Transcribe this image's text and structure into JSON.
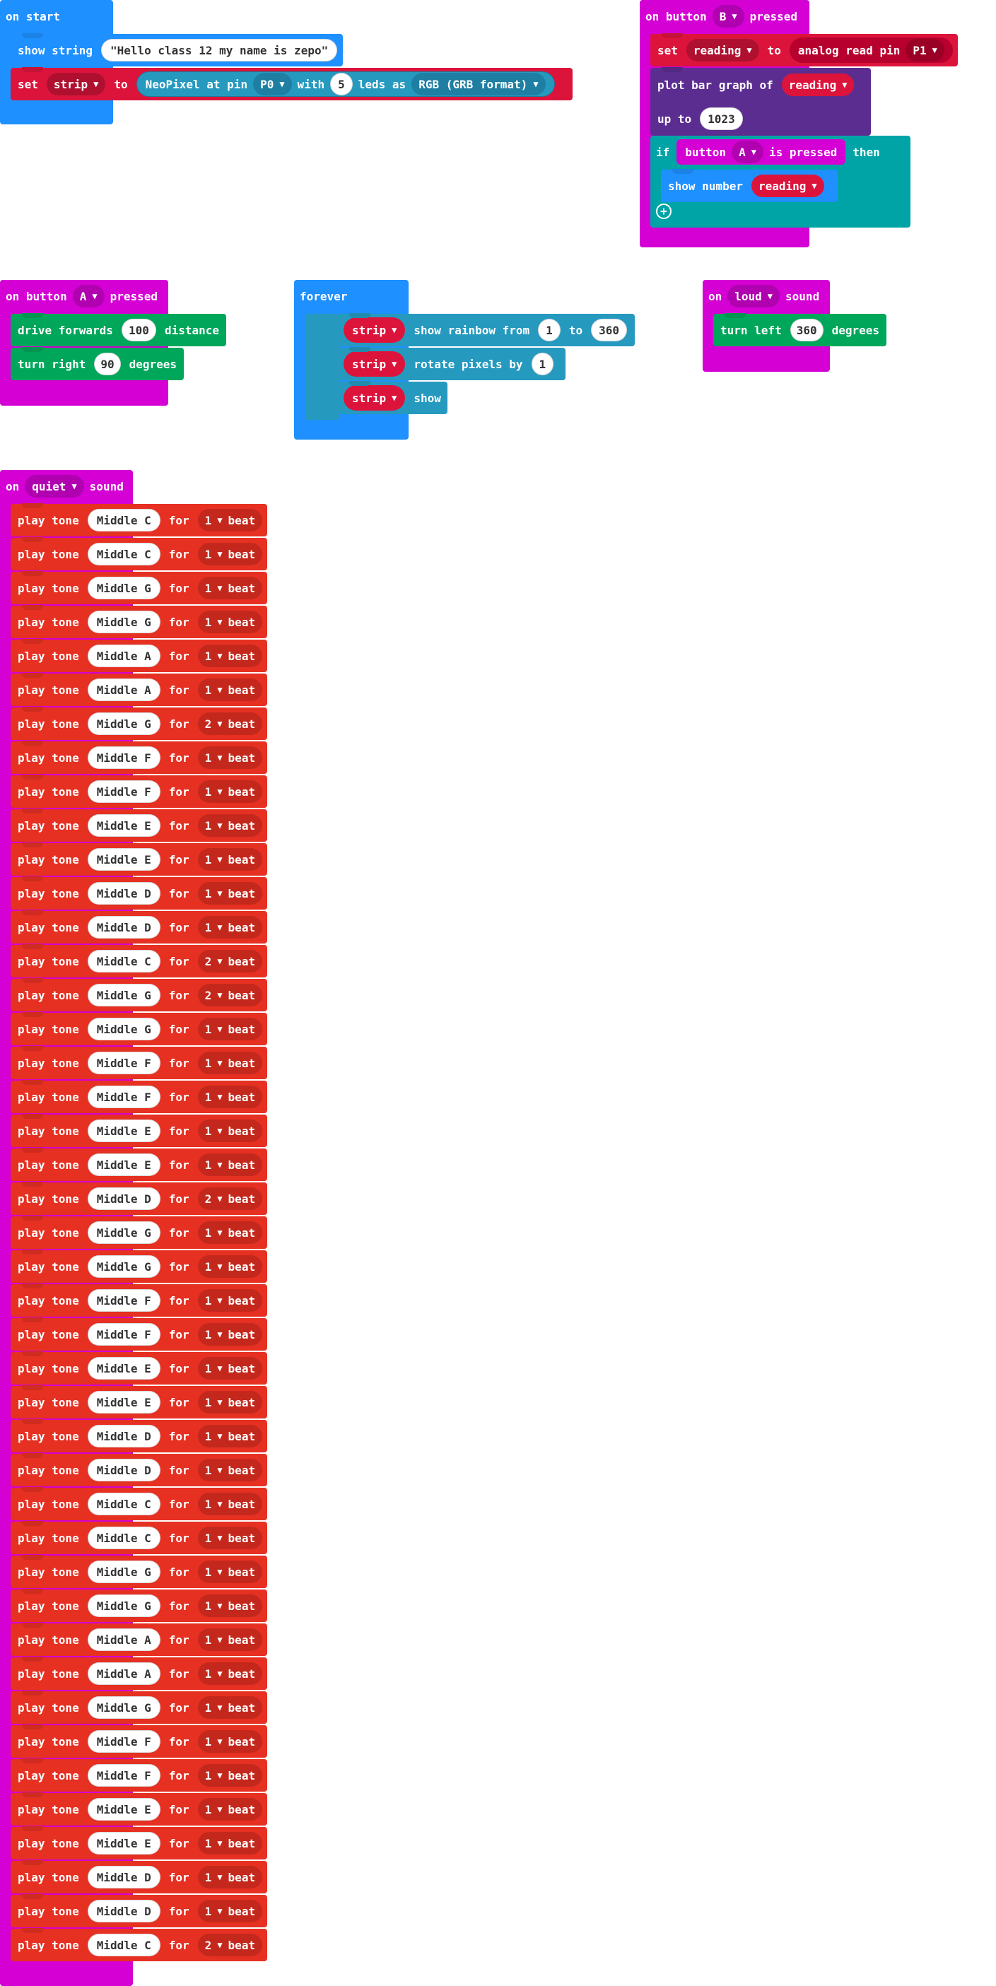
{
  "colors": {
    "basic": "#1e90ff",
    "variables": "#dc143c",
    "neopixel": "#2699bf",
    "input": "#d400d4",
    "led": "#5c2d91",
    "logic": "#00a4a6",
    "pins": "#b8002e",
    "robot": "#00a65a",
    "music": "#e63022"
  },
  "on_start": {
    "header": "on start",
    "show_string_label": "show string",
    "show_string_value": "\"Hello class 12 my name is zepo\"",
    "set_label": "set",
    "set_var": "strip",
    "to_label": "to",
    "neopixel_label": "NeoPixel at pin",
    "pin": "P0",
    "with_label": "with",
    "led_count": "5",
    "leds_as_label": "leds as",
    "format": "RGB (GRB format)"
  },
  "on_button_b": {
    "on_label": "on button",
    "button": "B",
    "pressed_label": "pressed",
    "set_label": "set",
    "var": "reading",
    "to_label": "to",
    "analog_label": "analog read pin",
    "analog_pin": "P1",
    "plot_label": "plot bar graph of",
    "plot_var": "reading",
    "up_to_label": "up to",
    "up_to_value": "1023",
    "if_label": "if",
    "cond_button_label": "button",
    "cond_button": "A",
    "cond_pressed_label": "is pressed",
    "then_label": "then",
    "show_number_label": "show number",
    "show_number_var": "reading",
    "add_icon": "add-circle-icon"
  },
  "on_button_a": {
    "on_label": "on button",
    "button": "A",
    "pressed_label": "pressed",
    "drive_label": "drive forwards",
    "drive_value": "100",
    "distance_label": "distance",
    "turn_label": "turn right",
    "turn_value": "90",
    "degrees_label": "degrees"
  },
  "forever": {
    "header": "forever",
    "strip_var": "strip",
    "rainbow_label": "show rainbow from",
    "rainbow_from": "1",
    "rainbow_to_label": "to",
    "rainbow_to": "360",
    "rotate_label": "rotate pixels by",
    "rotate_value": "1",
    "show_label": "show"
  },
  "on_loud": {
    "on_label": "on",
    "level": "loud",
    "sound_label": "sound",
    "turn_label": "turn left",
    "turn_value": "360",
    "degrees_label": "degrees"
  },
  "on_quiet": {
    "on_label": "on",
    "level": "quiet",
    "sound_label": "sound",
    "play_label": "play tone",
    "for_label": "for",
    "beat_label": "beat",
    "tones": [
      {
        "note": "Middle C",
        "beats": "1"
      },
      {
        "note": "Middle C",
        "beats": "1"
      },
      {
        "note": "Middle G",
        "beats": "1"
      },
      {
        "note": "Middle G",
        "beats": "1"
      },
      {
        "note": "Middle A",
        "beats": "1"
      },
      {
        "note": "Middle A",
        "beats": "1"
      },
      {
        "note": "Middle G",
        "beats": "2"
      },
      {
        "note": "Middle F",
        "beats": "1"
      },
      {
        "note": "Middle F",
        "beats": "1"
      },
      {
        "note": "Middle E",
        "beats": "1"
      },
      {
        "note": "Middle E",
        "beats": "1"
      },
      {
        "note": "Middle D",
        "beats": "1"
      },
      {
        "note": "Middle D",
        "beats": "1"
      },
      {
        "note": "Middle C",
        "beats": "2"
      },
      {
        "note": "Middle G",
        "beats": "2"
      },
      {
        "note": "Middle G",
        "beats": "1"
      },
      {
        "note": "Middle F",
        "beats": "1"
      },
      {
        "note": "Middle F",
        "beats": "1"
      },
      {
        "note": "Middle E",
        "beats": "1"
      },
      {
        "note": "Middle E",
        "beats": "1"
      },
      {
        "note": "Middle D",
        "beats": "2"
      },
      {
        "note": "Middle G",
        "beats": "1"
      },
      {
        "note": "Middle G",
        "beats": "1"
      },
      {
        "note": "Middle F",
        "beats": "1"
      },
      {
        "note": "Middle F",
        "beats": "1"
      },
      {
        "note": "Middle E",
        "beats": "1"
      },
      {
        "note": "Middle E",
        "beats": "1"
      },
      {
        "note": "Middle D",
        "beats": "1"
      },
      {
        "note": "Middle D",
        "beats": "1"
      },
      {
        "note": "Middle C",
        "beats": "1"
      },
      {
        "note": "Middle C",
        "beats": "1"
      },
      {
        "note": "Middle G",
        "beats": "1"
      },
      {
        "note": "Middle G",
        "beats": "1"
      },
      {
        "note": "Middle A",
        "beats": "1"
      },
      {
        "note": "Middle A",
        "beats": "1"
      },
      {
        "note": "Middle G",
        "beats": "1"
      },
      {
        "note": "Middle F",
        "beats": "1"
      },
      {
        "note": "Middle F",
        "beats": "1"
      },
      {
        "note": "Middle E",
        "beats": "1"
      },
      {
        "note": "Middle E",
        "beats": "1"
      },
      {
        "note": "Middle D",
        "beats": "1"
      },
      {
        "note": "Middle D",
        "beats": "1"
      },
      {
        "note": "Middle C",
        "beats": "2"
      }
    ]
  }
}
